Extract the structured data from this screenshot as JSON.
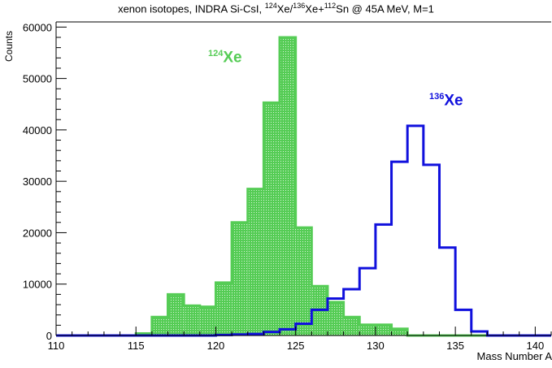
{
  "chart_data": {
    "type": "histogram",
    "title": {
      "prefix": "xenon isotopes, INDRA Si-CsI, ",
      "sup1": "124",
      "t1": "Xe/",
      "sup2": "136",
      "t2": "Xe+",
      "sup3": "112",
      "t3": "Sn @ 45A MeV, M=1"
    },
    "xlabel": "Mass Number A",
    "ylabel": "Counts",
    "xlim": [
      110,
      141
    ],
    "ylim": [
      0,
      61000
    ],
    "xticks": [
      110,
      115,
      120,
      125,
      130,
      135,
      140
    ],
    "yticks": [
      0,
      10000,
      20000,
      30000,
      40000,
      50000,
      60000
    ],
    "bin_width": 1,
    "series": [
      {
        "name_sup": "124",
        "name_text": "Xe",
        "color": "#55cc55",
        "fill": true,
        "bin_starts": [
          110,
          111,
          112,
          113,
          114,
          115,
          116,
          117,
          118,
          119,
          120,
          121,
          122,
          123,
          124,
          125,
          126,
          127,
          128,
          129,
          130,
          131,
          132,
          133,
          134,
          135,
          136,
          137,
          138,
          139,
          140
        ],
        "values": [
          0,
          0,
          0,
          0,
          0,
          400,
          3600,
          8000,
          5800,
          5600,
          10300,
          22000,
          28500,
          45300,
          58000,
          21000,
          9600,
          6500,
          3600,
          2100,
          2100,
          1300,
          0,
          0,
          0,
          0,
          0,
          0,
          0,
          0,
          0
        ]
      },
      {
        "name_sup": "136",
        "name_text": "Xe",
        "color": "#1010dd",
        "fill": false,
        "bin_starts": [
          110,
          111,
          112,
          113,
          114,
          115,
          116,
          117,
          118,
          119,
          120,
          121,
          122,
          123,
          124,
          125,
          126,
          127,
          128,
          129,
          130,
          131,
          132,
          133,
          134,
          135,
          136,
          137,
          138,
          139,
          140
        ],
        "values": [
          0,
          0,
          0,
          0,
          0,
          0,
          0,
          0,
          0,
          0,
          100,
          200,
          300,
          700,
          1200,
          2300,
          5000,
          7200,
          9000,
          13100,
          21600,
          33800,
          40800,
          33200,
          17100,
          5000,
          800,
          0,
          0,
          0,
          0
        ]
      }
    ]
  }
}
